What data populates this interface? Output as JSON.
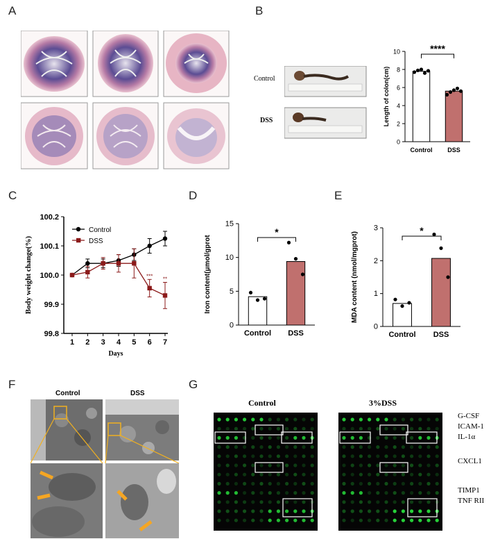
{
  "panels": {
    "A": {
      "letter": "A"
    },
    "B": {
      "letter": "B",
      "row_labels": [
        "Control",
        "DSS"
      ],
      "chart_data": {
        "type": "bar",
        "categories": [
          "Control",
          "DSS"
        ],
        "values": [
          7.8,
          5.6
        ],
        "points": [
          [
            7.7,
            7.9,
            8.0,
            7.6,
            7.85
          ],
          [
            5.2,
            5.5,
            5.7,
            5.9,
            5.6
          ]
        ],
        "colors": [
          "#ffffff",
          "#c0706e"
        ],
        "ylabel": "Length of colon(cm)",
        "yticks": [
          0,
          2,
          4,
          6,
          8,
          10
        ],
        "ylim": [
          0,
          10
        ],
        "significance": "****"
      }
    },
    "C": {
      "letter": "C",
      "chart_data": {
        "type": "line",
        "x": [
          1,
          2,
          3,
          4,
          5,
          6,
          7
        ],
        "series": [
          {
            "name": "Control",
            "values": [
              100.0,
              100.04,
              100.04,
              100.05,
              100.07,
              100.1,
              100.125
            ],
            "color": "#000000"
          },
          {
            "name": "DSS",
            "values": [
              100.0,
              100.01,
              100.04,
              100.04,
              100.04,
              99.955,
              99.93
            ],
            "color": "#8b1a1a"
          }
        ],
        "error": [
          [
            0,
            0.015,
            0.015,
            0.02,
            0.02,
            0.025,
            0.025
          ],
          [
            0,
            0.02,
            0.02,
            0.03,
            0.05,
            0.03,
            0.045
          ]
        ],
        "xlabel": "Days",
        "ylabel": "Body weight change(%)",
        "yticks": [
          "99.8",
          "99.9",
          "100.0",
          "100.1",
          "100.2"
        ],
        "ylim": [
          99.8,
          100.2
        ],
        "annotations": [
          {
            "x": 6,
            "text": "***"
          },
          {
            "x": 7,
            "text": "**"
          }
        ],
        "legend": "top-left"
      }
    },
    "D": {
      "letter": "D",
      "chart_data": {
        "type": "bar",
        "categories": [
          "Control",
          "DSS"
        ],
        "values": [
          4.2,
          9.4
        ],
        "points": [
          [
            4.8,
            3.7,
            3.9
          ],
          [
            12.2,
            9.8,
            7.5
          ]
        ],
        "colors": [
          "#ffffff",
          "#c0706e"
        ],
        "ylabel": "Iron content(μmol/gprot",
        "yticks": [
          0,
          5,
          10,
          15
        ],
        "ylim": [
          0,
          15
        ],
        "significance": "*"
      }
    },
    "E": {
      "letter": "E",
      "chart_data": {
        "type": "bar",
        "categories": [
          "Control",
          "DSS"
        ],
        "values": [
          0.7,
          2.07
        ],
        "points": [
          [
            0.82,
            0.62,
            0.72
          ],
          [
            2.8,
            2.38,
            1.5
          ]
        ],
        "colors": [
          "#ffffff",
          "#c0706e"
        ],
        "ylabel": "MDA content (nmol/mgprot)",
        "yticks": [
          0,
          1,
          2,
          3
        ],
        "ylim": [
          0,
          3
        ],
        "significance": "*"
      }
    },
    "F": {
      "letter": "F",
      "col_labels": [
        "Control",
        "DSS"
      ]
    },
    "G": {
      "letter": "G",
      "col_labels": [
        "Control",
        "3%DSS"
      ],
      "markers": [
        "G-CSF",
        "ICAM-1",
        "IL-1α",
        "CXCL1",
        "TIMP1",
        "TNF RII"
      ]
    }
  }
}
